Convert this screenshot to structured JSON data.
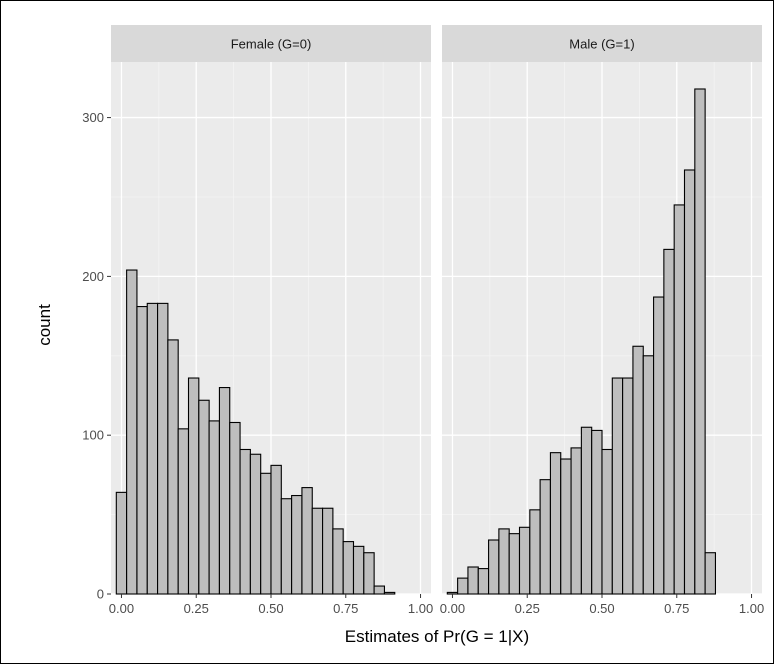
{
  "chart_data": {
    "type": "bar",
    "subtype": "faceted-histogram",
    "xlabel": "Estimates of Pr(G = 1|X)",
    "ylabel": "count",
    "xlim": [
      -0.035,
      1.035
    ],
    "ylim": [
      0,
      335
    ],
    "x_ticks": [
      0.0,
      0.25,
      0.5,
      0.75,
      1.0
    ],
    "x_tick_labels": [
      "0.00",
      "0.25",
      "0.50",
      "0.75",
      "1.00"
    ],
    "y_ticks": [
      0,
      100,
      200,
      300
    ],
    "y_tick_labels": [
      "0",
      "100",
      "200",
      "300"
    ],
    "bin_width": 0.0345,
    "grid": true,
    "colors": {
      "panel_background": "#ebebeb",
      "grid_major": "#ffffff",
      "grid_minor": "#f4f4f4",
      "strip_background": "#d9d9d9",
      "bar_fill": "#bebebe",
      "bar_outline": "#000000",
      "frame": "#000000"
    },
    "facets": [
      {
        "label": "Female (G=0)",
        "bin_centers": [
          0.0,
          0.0345,
          0.069,
          0.1035,
          0.138,
          0.1724,
          0.2069,
          0.2414,
          0.2759,
          0.3103,
          0.3448,
          0.3793,
          0.4138,
          0.4483,
          0.4828,
          0.5172,
          0.5517,
          0.5862,
          0.6207,
          0.6552,
          0.6897,
          0.7241,
          0.7586,
          0.7931,
          0.8276,
          0.8621,
          0.8966,
          0.931,
          0.9655,
          1.0
        ],
        "values": [
          64,
          204,
          181,
          183,
          183,
          160,
          104,
          136,
          122,
          109,
          130,
          108,
          91,
          88,
          76,
          81,
          60,
          62,
          67,
          54,
          54,
          41,
          33,
          30,
          26,
          5,
          1,
          0,
          0,
          0
        ]
      },
      {
        "label": "Male (G=1)",
        "bin_centers": [
          0.0,
          0.0345,
          0.069,
          0.1035,
          0.138,
          0.1724,
          0.2069,
          0.2414,
          0.2759,
          0.3103,
          0.3448,
          0.3793,
          0.4138,
          0.4483,
          0.4828,
          0.5172,
          0.5517,
          0.5862,
          0.6207,
          0.6552,
          0.6897,
          0.7241,
          0.7586,
          0.7931,
          0.8276,
          0.8621,
          0.8966,
          0.931,
          0.9655,
          1.0
        ],
        "values": [
          1,
          10,
          17,
          16,
          34,
          41,
          38,
          42,
          53,
          72,
          89,
          85,
          92,
          105,
          103,
          91,
          136,
          136,
          156,
          150,
          187,
          217,
          245,
          267,
          318,
          26,
          0,
          0,
          0,
          0
        ]
      }
    ]
  }
}
